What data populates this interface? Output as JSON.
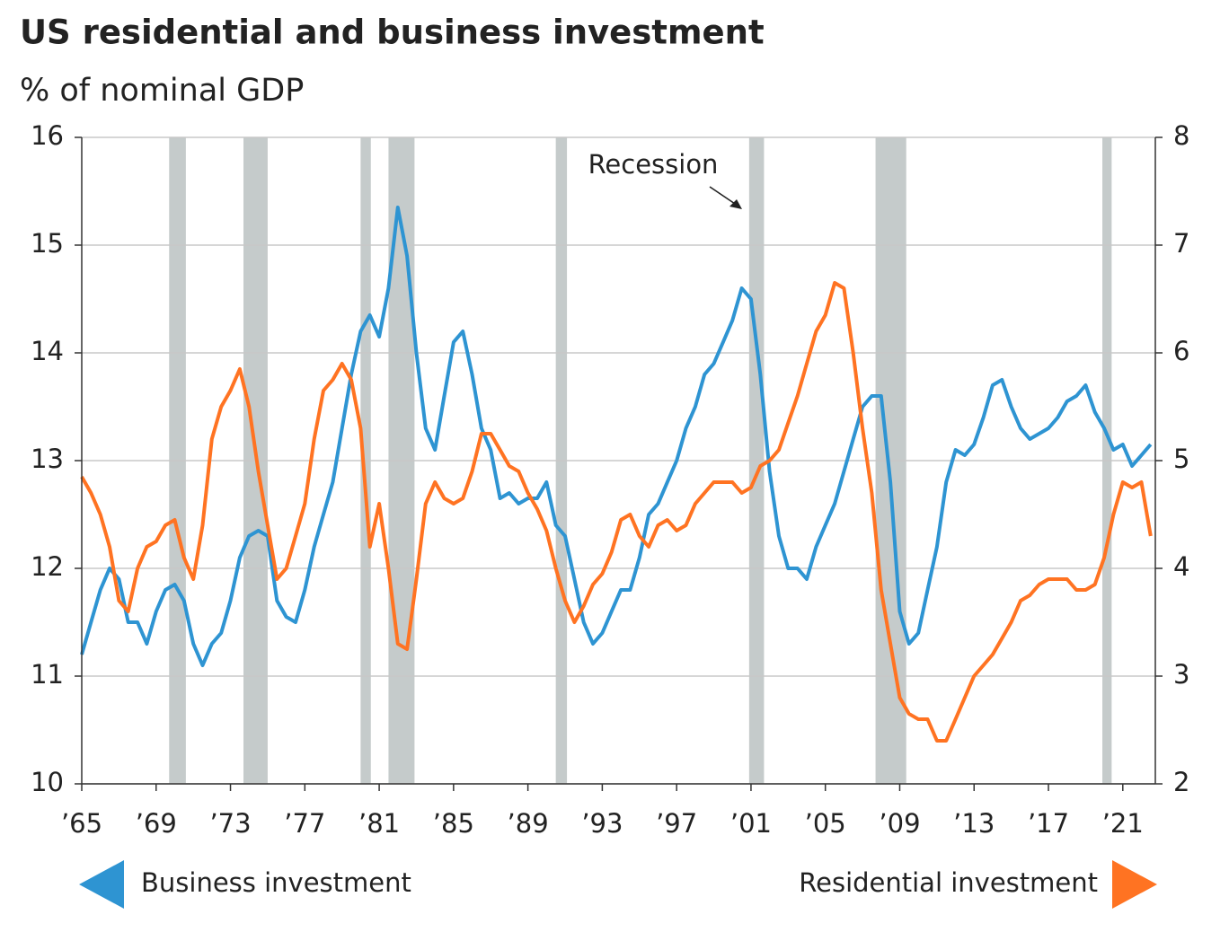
{
  "chart_data": {
    "type": "line",
    "title": "US residential and business investment",
    "subtitle": "% of nominal GDP",
    "annotation": "Recession",
    "xlim": [
      1965,
      2022.75
    ],
    "xticks": [
      {
        "value": 1965,
        "label": "’65"
      },
      {
        "value": 1969,
        "label": "’69"
      },
      {
        "value": 1973,
        "label": "’73"
      },
      {
        "value": 1977,
        "label": "’77"
      },
      {
        "value": 1981,
        "label": "’81"
      },
      {
        "value": 1985,
        "label": "’85"
      },
      {
        "value": 1989,
        "label": "’89"
      },
      {
        "value": 1993,
        "label": "’93"
      },
      {
        "value": 1997,
        "label": "’97"
      },
      {
        "value": 2001,
        "label": "’01"
      },
      {
        "value": 2005,
        "label": "’05"
      },
      {
        "value": 2009,
        "label": "’09"
      },
      {
        "value": 2013,
        "label": "’13"
      },
      {
        "value": 2017,
        "label": "’17"
      },
      {
        "value": 2021,
        "label": "’21"
      }
    ],
    "ylim": [
      10,
      16
    ],
    "yticks": [
      10,
      11,
      12,
      13,
      14,
      15,
      16
    ],
    "y2lim": [
      2,
      8
    ],
    "y2ticks": [
      2,
      3,
      4,
      5,
      6,
      7,
      8
    ],
    "grid": true,
    "recession_color": "#c5cbcb",
    "recessions": [
      [
        1969.7,
        1970.6
      ],
      [
        1973.7,
        1975.0
      ],
      [
        1980.0,
        1980.55
      ],
      [
        1981.5,
        1982.9
      ],
      [
        1990.5,
        1991.1
      ],
      [
        2000.9,
        2001.7
      ],
      [
        2007.7,
        2009.35
      ],
      [
        2019.9,
        2020.4
      ]
    ],
    "x": [
      1965,
      1965.5,
      1966,
      1966.5,
      1967,
      1967.5,
      1968,
      1968.5,
      1969,
      1969.5,
      1970,
      1970.5,
      1971,
      1971.5,
      1972,
      1972.5,
      1973,
      1973.5,
      1974,
      1974.5,
      1975,
      1975.5,
      1976,
      1976.5,
      1977,
      1977.5,
      1978,
      1978.5,
      1979,
      1979.5,
      1980,
      1980.5,
      1981,
      1981.5,
      1982,
      1982.5,
      1983,
      1983.5,
      1984,
      1984.5,
      1985,
      1985.5,
      1986,
      1986.5,
      1987,
      1987.5,
      1988,
      1988.5,
      1989,
      1989.5,
      1990,
      1990.5,
      1991,
      1991.5,
      1992,
      1992.5,
      1993,
      1993.5,
      1994,
      1994.5,
      1995,
      1995.5,
      1996,
      1996.5,
      1997,
      1997.5,
      1998,
      1998.5,
      1999,
      1999.5,
      2000,
      2000.5,
      2001,
      2001.5,
      2002,
      2002.5,
      2003,
      2003.5,
      2004,
      2004.5,
      2005,
      2005.5,
      2006,
      2006.5,
      2007,
      2007.5,
      2008,
      2008.5,
      2009,
      2009.5,
      2010,
      2010.5,
      2011,
      2011.5,
      2012,
      2012.5,
      2013,
      2013.5,
      2014,
      2014.5,
      2015,
      2015.5,
      2016,
      2016.5,
      2017,
      2017.5,
      2018,
      2018.5,
      2019,
      2019.5,
      2020,
      2020.5,
      2021,
      2021.5,
      2022,
      2022.5
    ],
    "series": [
      {
        "name": "Business investment",
        "color": "#2e94d2",
        "axis": "y",
        "values": [
          11.2,
          11.5,
          11.8,
          12.0,
          11.9,
          11.5,
          11.5,
          11.3,
          11.6,
          11.8,
          11.85,
          11.7,
          11.3,
          11.1,
          11.3,
          11.4,
          11.7,
          12.1,
          12.3,
          12.35,
          12.3,
          11.7,
          11.55,
          11.5,
          11.8,
          12.2,
          12.5,
          12.8,
          13.3,
          13.8,
          14.2,
          14.35,
          14.15,
          14.6,
          15.35,
          14.9,
          14.0,
          13.3,
          13.1,
          13.6,
          14.1,
          14.2,
          13.8,
          13.3,
          13.1,
          12.65,
          12.7,
          12.6,
          12.65,
          12.65,
          12.8,
          12.4,
          12.3,
          11.9,
          11.5,
          11.3,
          11.4,
          11.6,
          11.8,
          11.8,
          12.1,
          12.5,
          12.6,
          12.8,
          13.0,
          13.3,
          13.5,
          13.8,
          13.9,
          14.1,
          14.3,
          14.6,
          14.5,
          13.8,
          12.9,
          12.3,
          12.0,
          12.0,
          11.9,
          12.2,
          12.4,
          12.6,
          12.9,
          13.2,
          13.5,
          13.6,
          13.6,
          12.8,
          11.6,
          11.3,
          11.4,
          11.8,
          12.2,
          12.8,
          13.1,
          13.05,
          13.15,
          13.4,
          13.7,
          13.75,
          13.5,
          13.3,
          13.2,
          13.25,
          13.3,
          13.4,
          13.55,
          13.6,
          13.7,
          13.45,
          13.3,
          13.1,
          13.15,
          12.95,
          13.05,
          13.15
        ]
      },
      {
        "name": "Residential investment",
        "color": "#ff7322",
        "axis": "y2",
        "values": [
          4.85,
          4.7,
          4.5,
          4.2,
          3.7,
          3.6,
          4.0,
          4.2,
          4.25,
          4.4,
          4.45,
          4.1,
          3.9,
          4.4,
          5.2,
          5.5,
          5.65,
          5.85,
          5.5,
          4.9,
          4.4,
          3.9,
          4.0,
          4.3,
          4.6,
          5.2,
          5.65,
          5.75,
          5.9,
          5.75,
          5.3,
          4.2,
          4.6,
          4.0,
          3.3,
          3.25,
          3.9,
          4.6,
          4.8,
          4.65,
          4.6,
          4.65,
          4.9,
          5.25,
          5.25,
          5.1,
          4.95,
          4.9,
          4.7,
          4.55,
          4.35,
          4.0,
          3.7,
          3.5,
          3.65,
          3.85,
          3.95,
          4.15,
          4.45,
          4.5,
          4.3,
          4.2,
          4.4,
          4.45,
          4.35,
          4.4,
          4.6,
          4.7,
          4.8,
          4.8,
          4.8,
          4.7,
          4.75,
          4.95,
          5.0,
          5.1,
          5.35,
          5.6,
          5.9,
          6.2,
          6.35,
          6.65,
          6.6,
          6.0,
          5.3,
          4.7,
          3.8,
          3.3,
          2.8,
          2.65,
          2.6,
          2.6,
          2.4,
          2.4,
          2.6,
          2.8,
          3.0,
          3.1,
          3.2,
          3.35,
          3.5,
          3.7,
          3.75,
          3.85,
          3.9,
          3.9,
          3.9,
          3.8,
          3.8,
          3.85,
          4.1,
          4.5,
          4.8,
          4.75,
          4.8,
          4.3
        ]
      }
    ]
  }
}
